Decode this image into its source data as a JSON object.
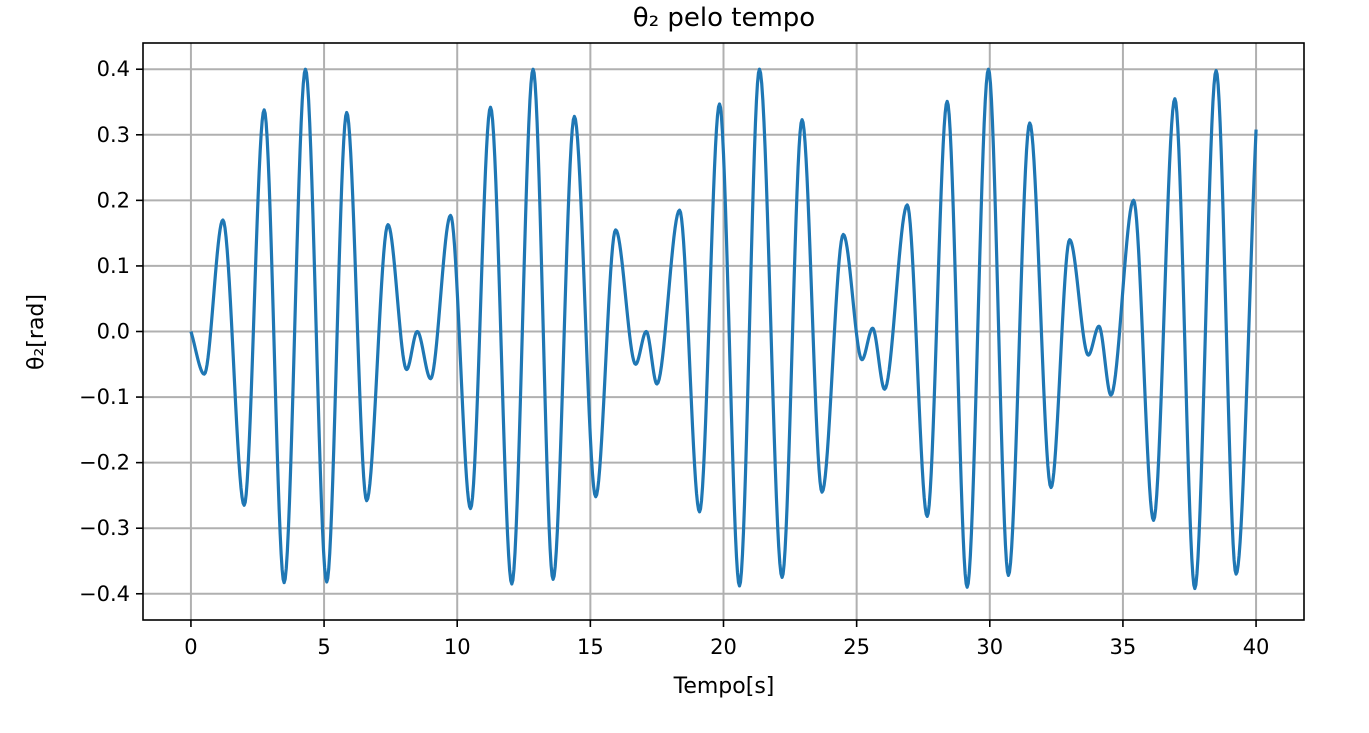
{
  "chart_data": {
    "type": "line",
    "title": "θ₂ pelo tempo",
    "xlabel": "Tempo[s]",
    "ylabel": "θ₂[rad]",
    "xlim": [
      -1.8,
      41.8
    ],
    "ylim": [
      -0.44,
      0.44
    ],
    "xticks": [
      0,
      5,
      10,
      15,
      20,
      25,
      30,
      35,
      40
    ],
    "xtick_labels": [
      "0",
      "5",
      "10",
      "15",
      "20",
      "25",
      "30",
      "35",
      "40"
    ],
    "yticks": [
      0.4,
      0.3,
      0.2,
      0.1,
      0.0,
      -0.1,
      -0.2,
      -0.3,
      -0.4
    ],
    "ytick_labels": [
      "0.4",
      "0.3",
      "0.2",
      "0.1",
      "0.0",
      "−0.1",
      "−0.2",
      "−0.3",
      "−0.4"
    ],
    "grid": true,
    "series": [
      {
        "color": "#1f77b4",
        "x": [
          0.0,
          0.5,
          1.2,
          2.0,
          2.75,
          3.5,
          4.3,
          5.1,
          5.85,
          6.6,
          7.4,
          8.1,
          8.5,
          9.0,
          9.75,
          10.5,
          11.25,
          12.05,
          12.85,
          13.6,
          14.4,
          15.2,
          15.95,
          16.7,
          17.1,
          17.5,
          18.35,
          19.1,
          19.85,
          20.6,
          21.35,
          22.2,
          22.95,
          23.7,
          24.5,
          25.2,
          25.6,
          26.05,
          26.9,
          27.65,
          28.4,
          29.15,
          29.95,
          30.7,
          31.5,
          32.3,
          33.0,
          33.7,
          34.1,
          34.55,
          35.4,
          36.15,
          36.95,
          37.7,
          38.5,
          39.25,
          40.0
        ],
        "y": [
          0.0,
          -0.065,
          0.17,
          -0.265,
          0.338,
          -0.383,
          0.4,
          -0.382,
          0.334,
          -0.258,
          0.163,
          -0.058,
          0.0,
          -0.072,
          0.177,
          -0.27,
          0.342,
          -0.385,
          0.4,
          -0.378,
          0.328,
          -0.252,
          0.155,
          -0.05,
          0.0,
          -0.08,
          0.185,
          -0.275,
          0.347,
          -0.388,
          0.4,
          -0.375,
          0.323,
          -0.245,
          0.148,
          -0.043,
          0.005,
          -0.088,
          0.193,
          -0.282,
          0.351,
          -0.39,
          0.4,
          -0.372,
          0.318,
          -0.238,
          0.14,
          -0.036,
          0.008,
          -0.097,
          0.2,
          -0.288,
          0.355,
          -0.392,
          0.398,
          -0.37,
          0.308
        ]
      }
    ]
  }
}
